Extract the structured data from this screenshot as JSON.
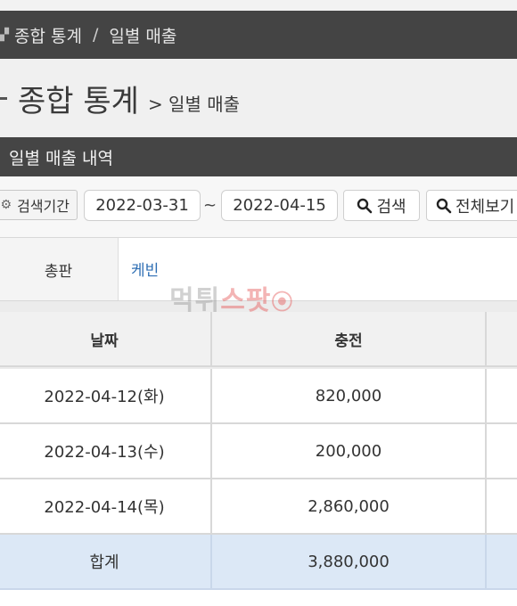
{
  "breadcrumb": {
    "root": "종합 통계",
    "separator": "/",
    "current": "일별 매출"
  },
  "title": {
    "main": "종합 통계",
    "sub": "> 일별 매출"
  },
  "section": {
    "title": "일별 매출 내역"
  },
  "search": {
    "label": "검색기간",
    "date_from": "2022-03-31",
    "tilde": "~",
    "date_to": "2022-04-15",
    "search_button": "검색",
    "view_all_button": "전체보기"
  },
  "filter": {
    "key": "총판",
    "value": "케빈"
  },
  "watermark": {
    "part1": "먹튀",
    "part2": "스팟"
  },
  "table": {
    "headers": [
      "날짜",
      "충전",
      ""
    ],
    "rows": [
      {
        "date": "2022-04-12(화)",
        "charge": "820,000"
      },
      {
        "date": "2022-04-13(수)",
        "charge": "200,000"
      },
      {
        "date": "2022-04-14(목)",
        "charge": "2,860,000"
      }
    ],
    "total": {
      "label": "합계",
      "charge": "3,880,000"
    }
  },
  "colors": {
    "header_bar": "#444444",
    "link": "#2f6fb4",
    "total_row": "#dce8f6"
  }
}
